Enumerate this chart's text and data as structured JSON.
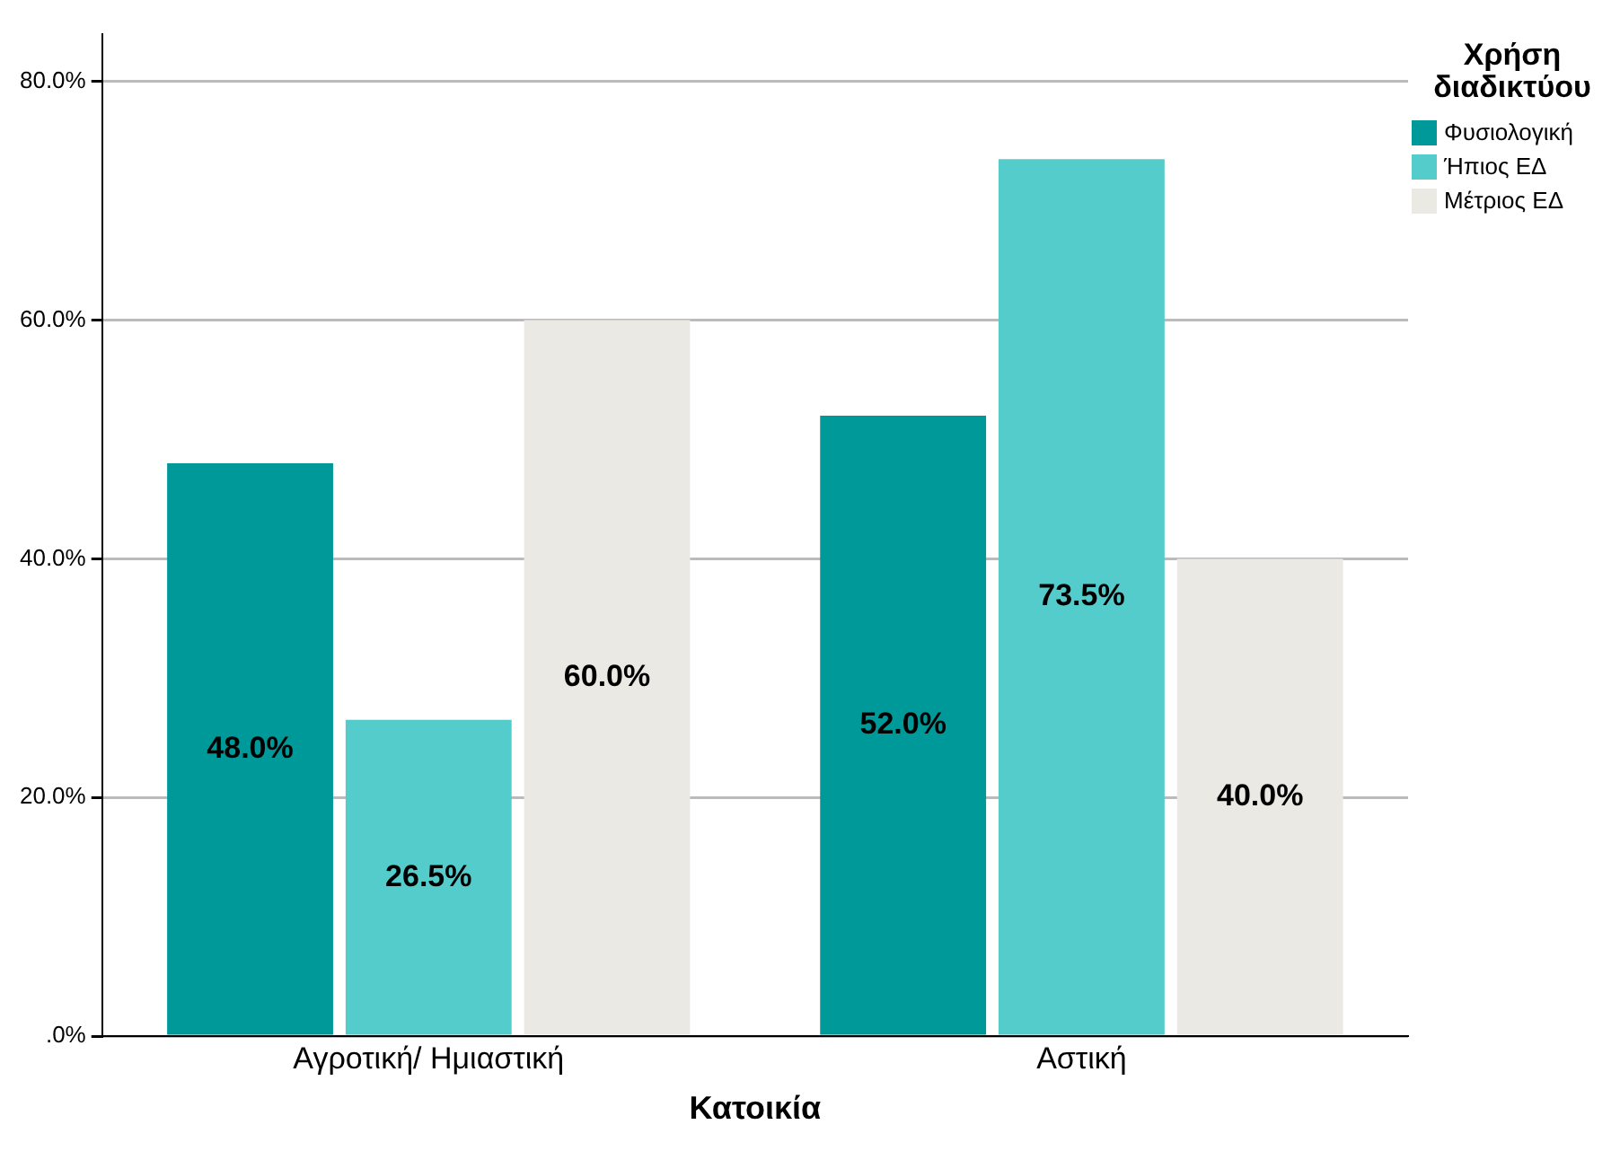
{
  "chart_data": {
    "type": "bar",
    "xlabel": "Κατοικία",
    "legend_title": "Χρήση\nδιαδικτύου",
    "legend": "top right",
    "grid": "y",
    "categories": [
      "Αγροτική/ Ημιαστική",
      "Αστική"
    ],
    "series": [
      {
        "name": "Φυσιολογική",
        "color": "#009999",
        "values": [
          48.0,
          52.0
        ],
        "value_labels": [
          "48.0%",
          "52.0%"
        ]
      },
      {
        "name": "Ήπιος ΕΔ",
        "color": "#55cccc",
        "values": [
          26.5,
          73.5
        ],
        "value_labels": [
          "26.5%",
          "73.5%"
        ]
      },
      {
        "name": "Μέτριος ΕΔ",
        "color": "#ebe9e4",
        "values": [
          60.0,
          40.0
        ],
        "value_labels": [
          "60.0%",
          "40.0%"
        ]
      }
    ],
    "ylim": [
      0,
      84
    ],
    "yticks": [
      {
        "value": 0,
        "label": ".0%"
      },
      {
        "value": 20,
        "label": "20.0%"
      },
      {
        "value": 40,
        "label": "40.0%"
      },
      {
        "value": 60,
        "label": "60.0%"
      },
      {
        "value": 80,
        "label": "80.0%"
      }
    ]
  }
}
